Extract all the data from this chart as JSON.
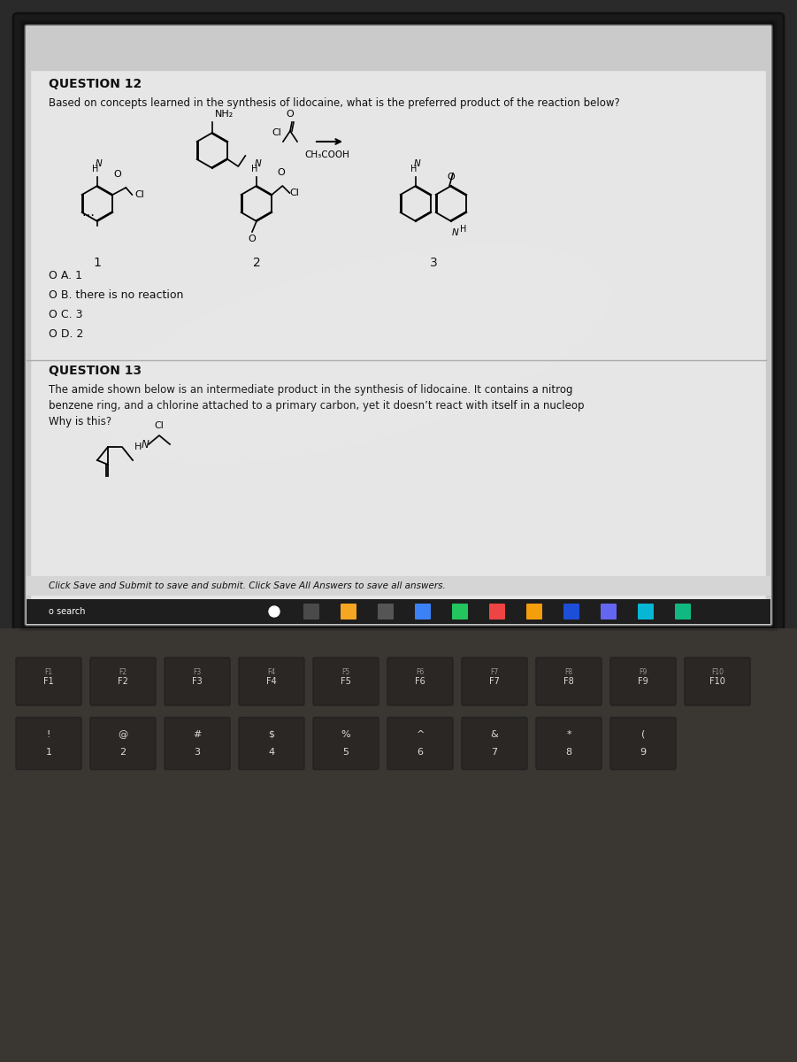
{
  "bg_outer": "#1a1a1a",
  "bg_screen": "#d0d0d0",
  "bg_content": "#e8e8e8",
  "bg_taskbar": "#1c1c1c",
  "text_color": "#111111",
  "title_q12": "QUESTION 12",
  "title_q13": "QUESTION 13",
  "q12_body": "Based on concepts learned in the synthesis of lidocaine, what is the preferred product of the reaction below?",
  "reaction_label": "CH₃COOH",
  "reactant_label1": "NH₂",
  "reactant_label2": "Cl",
  "options": [
    "O A. 1",
    "O B. there is no reaction",
    "O C. 3",
    "O D. 2"
  ],
  "mol_labels": [
    "1",
    "2",
    "3"
  ],
  "q13_body": "The amide shown below is an intermediate product in the synthesis of lidocaine. It contains a nitrog\nbenzene ring, and a chlorine attached to a primary carbon, yet it doesn’t react with itself in a nucleop\nWhy is this?",
  "footer_text": "Click Save and Submit to save and submit. Click Save All Answers to save all answers.",
  "taskbar_left": "o search",
  "keyboard_keys": [
    "F1",
    "F2",
    "F3",
    "F4",
    "F5",
    "F6",
    "F7",
    "F8",
    "F9",
    "F10"
  ],
  "keyboard_row2": [
    "!",
    "@",
    "#",
    "$",
    "%",
    "^",
    "&",
    "*",
    "("
  ],
  "keyboard_num": [
    "1",
    "2",
    "3",
    "4",
    "5",
    "6",
    "7",
    "8",
    "9"
  ],
  "content_bg": "#ececec",
  "screen_bg": "#c8c8c8"
}
